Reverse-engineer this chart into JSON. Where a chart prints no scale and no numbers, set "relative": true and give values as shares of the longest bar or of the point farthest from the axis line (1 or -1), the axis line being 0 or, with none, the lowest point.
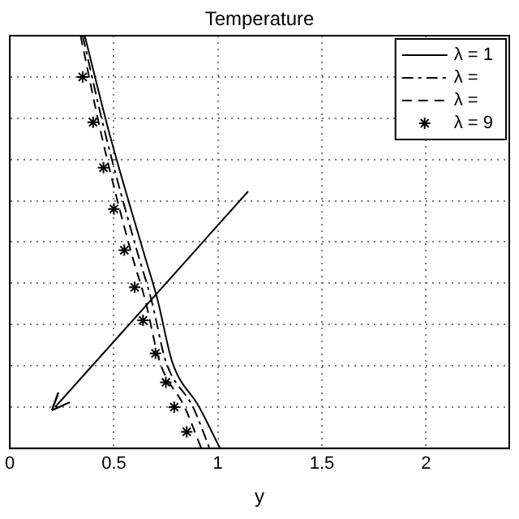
{
  "chart_data": {
    "type": "line",
    "title": "Temperature",
    "xlabel": "y",
    "relative": true,
    "xlim": [
      0,
      2.4
    ],
    "xticks": [
      0,
      0.5,
      1,
      1.5,
      2
    ],
    "grid": true,
    "legend": "top right",
    "series": [
      {
        "name": "λ = 1",
        "color": "#000000",
        "line_style": "solid",
        "marker": "none",
        "x": [
          0.36,
          0.48,
          0.64,
          0.71,
          0.78,
          0.91,
          1.01
        ],
        "values": [
          1,
          0.76,
          0.48,
          0.36,
          0.21,
          0.1,
          0
        ]
      },
      {
        "name": "λ =",
        "color": "#000000",
        "line_style": "dashdot",
        "marker": "none",
        "x": [
          0.35,
          0.46,
          0.61,
          0.68,
          0.75,
          0.88,
          0.96
        ],
        "values": [
          1,
          0.76,
          0.48,
          0.36,
          0.21,
          0.1,
          0
        ]
      },
      {
        "name": "λ =",
        "color": "#000000",
        "line_style": "dashed",
        "marker": "none",
        "x": [
          0.34,
          0.44,
          0.58,
          0.65,
          0.72,
          0.84,
          0.92
        ],
        "values": [
          1,
          0.76,
          0.48,
          0.36,
          0.21,
          0.1,
          0
        ]
      },
      {
        "name": "λ = 9",
        "type": "scatter",
        "color": "#000000",
        "marker": "cross",
        "x": [
          0.35,
          0.4,
          0.45,
          0.5,
          0.55,
          0.6,
          0.64,
          0.7,
          0.75,
          0.79,
          0.85
        ],
        "values": [
          0.9,
          0.79,
          0.68,
          0.58,
          0.48,
          0.39,
          0.31,
          0.23,
          0.16,
          0.1,
          0.04
        ]
      }
    ]
  }
}
